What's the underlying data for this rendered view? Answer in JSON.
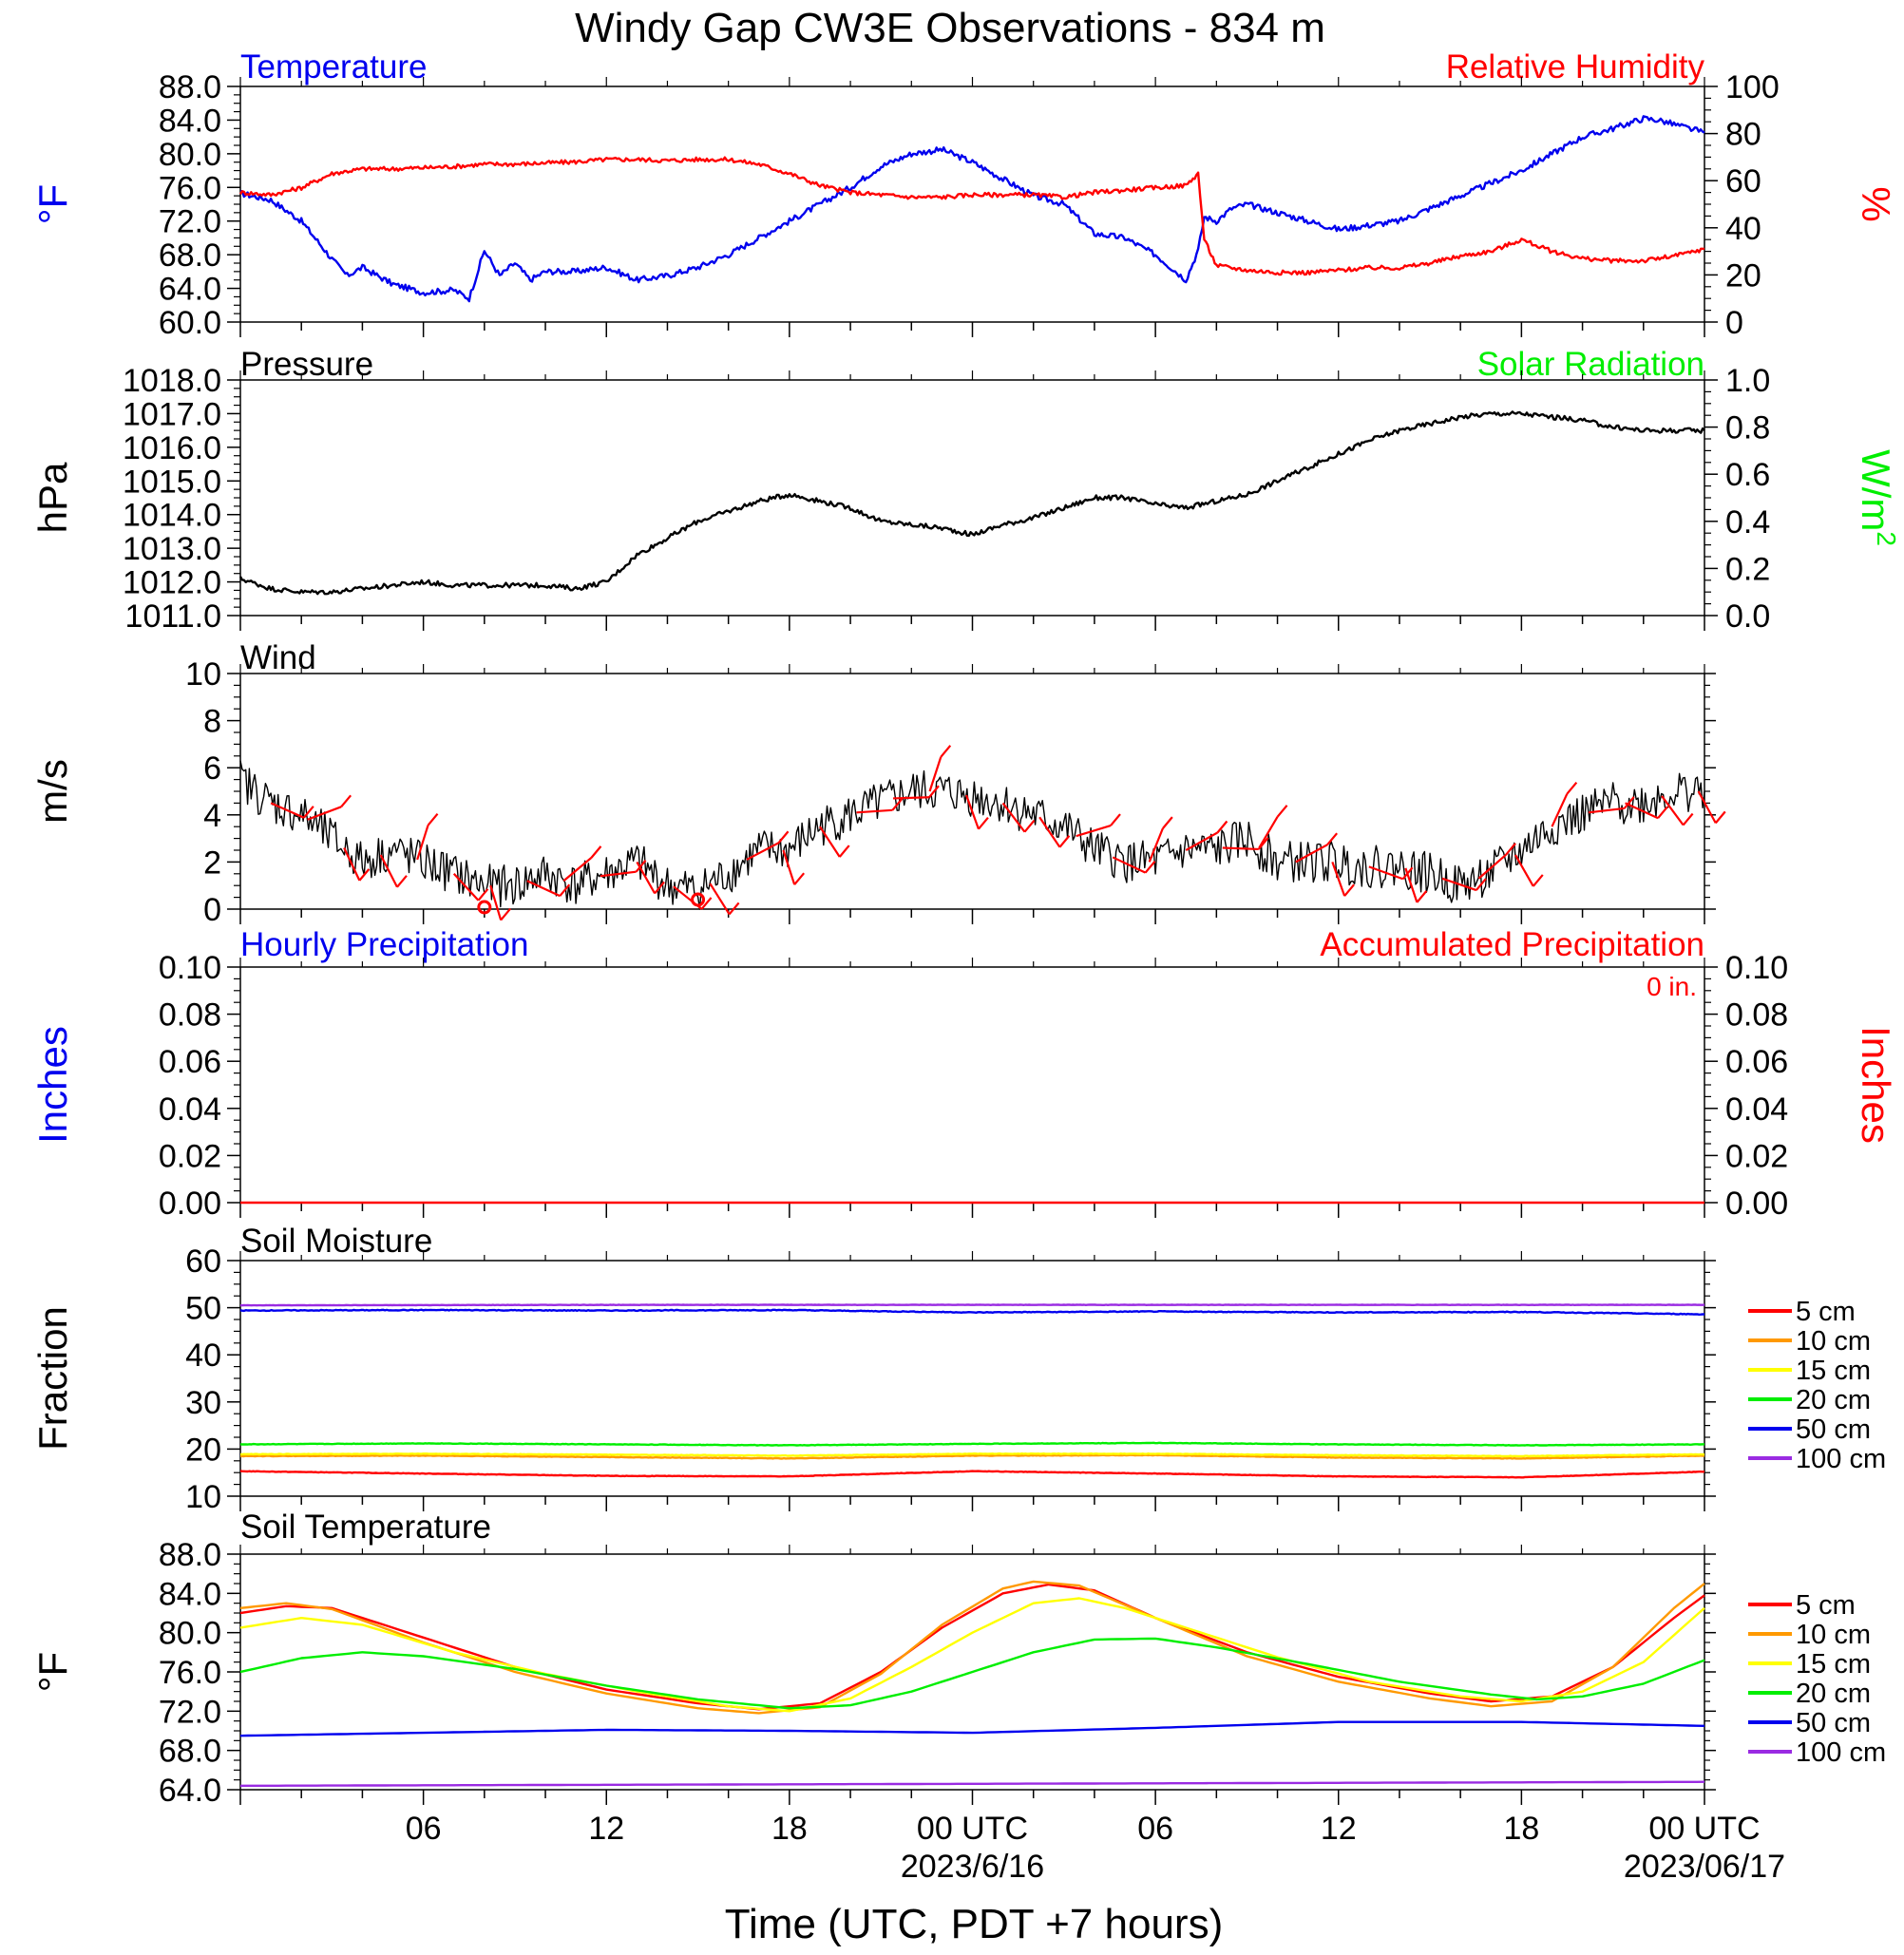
{
  "title": "Windy Gap CW3E Observations - 834 m",
  "x_axis": {
    "label": "Time (UTC, PDT +7 hours)",
    "ticks": [
      {
        "t": 6,
        "label": "06"
      },
      {
        "t": 12,
        "label": "12"
      },
      {
        "t": 18,
        "label": "18"
      },
      {
        "t": 24,
        "label": "00 UTC"
      },
      {
        "t": 30,
        "label": "06"
      },
      {
        "t": 36,
        "label": "12"
      },
      {
        "t": 42,
        "label": "18"
      },
      {
        "t": 48,
        "label": "00 UTC"
      }
    ],
    "date_labels": [
      {
        "t": 24,
        "label": "2023/6/16"
      },
      {
        "t": 48,
        "label": "2023/06/17"
      }
    ],
    "range_hours": [
      0,
      48
    ]
  },
  "legend": {
    "entries": [
      {
        "label": "5 cm",
        "color": "#ff0000"
      },
      {
        "label": "10 cm",
        "color": "#ff9900"
      },
      {
        "label": "15 cm",
        "color": "#ffff00"
      },
      {
        "label": "20 cm",
        "color": "#00ee00"
      },
      {
        "label": "50 cm",
        "color": "#0000ee"
      },
      {
        "label": "100 cm",
        "color": "#9a2be2"
      }
    ]
  },
  "chart_data": [
    {
      "type": "line",
      "id": "temp_rh",
      "left_title": "Temperature",
      "right_title": "Relative Humidity",
      "left_unit": "°F",
      "right_unit": "%",
      "left_ylim": [
        60,
        88
      ],
      "right_ylim": [
        0,
        100
      ],
      "left_ticks": [
        "60.0",
        "64.0",
        "68.0",
        "72.0",
        "76.0",
        "80.0",
        "84.0",
        "88.0"
      ],
      "right_ticks": [
        "0",
        "20",
        "40",
        "60",
        "80",
        "100"
      ],
      "series": [
        {
          "name": "Temperature",
          "axis": "left",
          "color": "#0000ee",
          "x": [
            0,
            1,
            2,
            3,
            3.5,
            4,
            5,
            6,
            7,
            7.5,
            8,
            8.5,
            9,
            9.5,
            10,
            11,
            12,
            13,
            14,
            15,
            16,
            17,
            18,
            19,
            20,
            21,
            22,
            23,
            24,
            25,
            26,
            27,
            28,
            29,
            30,
            31,
            31.4,
            31.6,
            32,
            32.5,
            33,
            34,
            35,
            36,
            37,
            38,
            39,
            40,
            41,
            42,
            43,
            44,
            45,
            46,
            46.5,
            47,
            47.5,
            48
          ],
          "y": [
            75.3,
            74.5,
            72.0,
            67.5,
            65.5,
            66.5,
            64.5,
            63.5,
            63.8,
            62.8,
            68.5,
            65.5,
            67.0,
            65.0,
            66.0,
            66.0,
            66.5,
            65.0,
            65.5,
            66.5,
            68.0,
            70.0,
            72.0,
            74.0,
            76.0,
            78.5,
            80.0,
            80.5,
            79.0,
            77.0,
            75.0,
            74.0,
            70.5,
            70.0,
            68.0,
            65.0,
            68.5,
            72.5,
            72.0,
            73.5,
            74.0,
            73.0,
            72.0,
            71.0,
            71.5,
            72.0,
            73.5,
            75.0,
            76.5,
            78.0,
            80.0,
            82.0,
            83.0,
            84.2,
            84.0,
            83.5,
            83.0,
            82.5
          ]
        },
        {
          "name": "Relative Humidity",
          "axis": "right",
          "color": "#ff0000",
          "x": [
            0,
            1,
            2,
            3,
            4,
            5,
            6,
            7,
            8,
            9,
            10,
            11,
            12,
            13,
            14,
            15,
            16,
            17,
            18,
            19,
            20,
            21,
            22,
            23,
            24,
            25,
            26,
            27,
            28,
            29,
            30,
            31,
            31.4,
            31.6,
            32,
            33,
            34,
            35,
            36,
            37,
            38,
            39,
            40,
            41,
            42,
            43,
            44,
            45,
            46,
            47,
            48
          ],
          "y": [
            55,
            54,
            57,
            63,
            65,
            65,
            65.5,
            66,
            67,
            67,
            67.5,
            68,
            69,
            69,
            68.5,
            69,
            69,
            67,
            63,
            58,
            55,
            54,
            53,
            53,
            54,
            54,
            54,
            53,
            55,
            56,
            57,
            58,
            63,
            35,
            24,
            22,
            21,
            21,
            22,
            23,
            23,
            25,
            28,
            30,
            35,
            30,
            27,
            26,
            26,
            28,
            31
          ]
        }
      ]
    },
    {
      "type": "line",
      "id": "pressure",
      "left_title": "Pressure",
      "right_title": "Solar Radiation",
      "left_unit": "hPa",
      "right_unit": "W/m",
      "right_unit_sup": "2",
      "left_ylim": [
        1011,
        1018
      ],
      "right_ylim": [
        0,
        1
      ],
      "left_ticks": [
        "1011.0",
        "1012.0",
        "1013.0",
        "1014.0",
        "1015.0",
        "1016.0",
        "1017.0",
        "1018.0"
      ],
      "right_ticks": [
        "0.0",
        "0.2",
        "0.4",
        "0.6",
        "0.8",
        "1.0"
      ],
      "series": [
        {
          "name": "Pressure",
          "axis": "left",
          "color": "#000000",
          "x": [
            0,
            1,
            2,
            3,
            4,
            5,
            6,
            7,
            8,
            9,
            10,
            11,
            12,
            12.5,
            13,
            14,
            15,
            16,
            17,
            18,
            19,
            20,
            21,
            22,
            23,
            24,
            25,
            26,
            27,
            28,
            29,
            30,
            31,
            32,
            33,
            34,
            35,
            36,
            37,
            38,
            39,
            40,
            41,
            42,
            43,
            44,
            45,
            46,
            47,
            48
          ],
          "y": [
            1012.1,
            1011.8,
            1011.7,
            1011.7,
            1011.8,
            1011.9,
            1012.0,
            1011.9,
            1011.9,
            1011.9,
            1011.9,
            1011.8,
            1012.0,
            1012.4,
            1012.8,
            1013.3,
            1013.8,
            1014.1,
            1014.4,
            1014.6,
            1014.4,
            1014.2,
            1013.8,
            1013.7,
            1013.6,
            1013.4,
            1013.7,
            1013.9,
            1014.2,
            1014.5,
            1014.5,
            1014.3,
            1014.2,
            1014.4,
            1014.6,
            1015.0,
            1015.4,
            1015.8,
            1016.2,
            1016.5,
            1016.7,
            1016.9,
            1017.0,
            1017.0,
            1016.9,
            1016.8,
            1016.6,
            1016.5,
            1016.5,
            1016.5
          ]
        }
      ]
    },
    {
      "type": "line",
      "id": "wind",
      "left_title": "Wind",
      "left_unit": "m/s",
      "left_ylim": [
        0,
        10
      ],
      "left_ticks": [
        "0",
        "2",
        "4",
        "6",
        "8",
        "10"
      ],
      "barb_color": "#ff0000",
      "calm_markers_hours": [
        8,
        15
      ],
      "series": [
        {
          "name": "Wind",
          "axis": "left",
          "color": "#000000",
          "x": [
            0,
            1,
            2,
            3,
            4,
            5,
            6,
            7,
            8,
            9,
            10,
            11,
            12,
            13,
            14,
            15,
            16,
            17,
            18,
            19,
            20,
            21,
            22,
            23,
            24,
            25,
            26,
            27,
            28,
            29,
            30,
            31,
            32,
            33,
            34,
            35,
            36,
            37,
            38,
            39,
            40,
            41,
            42,
            43,
            44,
            45,
            46,
            47,
            48
          ],
          "y": [
            5.5,
            4.5,
            4.0,
            3.0,
            2.0,
            2.5,
            2.0,
            1.5,
            1.0,
            1.0,
            1.5,
            1.0,
            1.5,
            2.0,
            1.0,
            0.8,
            1.5,
            2.5,
            2.5,
            3.5,
            4.0,
            4.5,
            5.0,
            5.0,
            4.8,
            4.5,
            4.0,
            3.5,
            2.5,
            2.0,
            2.0,
            2.5,
            2.5,
            3.0,
            2.0,
            2.0,
            2.0,
            1.8,
            1.8,
            1.5,
            1.0,
            1.5,
            2.5,
            3.5,
            4.0,
            4.5,
            4.5,
            5.0,
            5.0
          ]
        }
      ]
    },
    {
      "type": "line",
      "id": "precip",
      "left_title": "Hourly Precipitation",
      "right_title": "Accumulated Precipitation",
      "annotation": "0 in.",
      "left_unit": "Inches",
      "right_unit": "Inches",
      "left_ylim": [
        0,
        0.1
      ],
      "right_ylim": [
        0,
        0.1
      ],
      "left_ticks": [
        "0.00",
        "0.02",
        "0.04",
        "0.06",
        "0.08",
        "0.10"
      ],
      "right_ticks": [
        "0.00",
        "0.02",
        "0.04",
        "0.06",
        "0.08",
        "0.10"
      ],
      "series": [
        {
          "name": "Accumulated Precipitation",
          "axis": "left",
          "color": "#ff0000",
          "x": [
            0,
            48
          ],
          "y": [
            0,
            0
          ]
        }
      ]
    },
    {
      "type": "line",
      "id": "soil_moisture",
      "left_title": "Soil Moisture",
      "left_unit": "Fraction",
      "left_ylim": [
        10,
        60
      ],
      "left_ticks": [
        "10",
        "20",
        "30",
        "40",
        "50",
        "60"
      ],
      "series": [
        {
          "name": "5 cm",
          "axis": "left",
          "color": "#ff0000",
          "x": [
            0,
            6,
            12,
            18,
            24,
            30,
            36,
            42,
            48
          ],
          "y": [
            15.3,
            14.8,
            14.3,
            14.2,
            15.3,
            14.8,
            14.2,
            14.0,
            15.2
          ]
        },
        {
          "name": "10 cm",
          "axis": "left",
          "color": "#ff9900",
          "x": [
            0,
            6,
            12,
            18,
            24,
            30,
            36,
            42,
            48
          ],
          "y": [
            18.5,
            18.6,
            18.3,
            18.0,
            18.6,
            18.7,
            18.2,
            18.0,
            18.6
          ]
        },
        {
          "name": "15 cm",
          "axis": "left",
          "color": "#ffff00",
          "x": [
            0,
            6,
            12,
            18,
            24,
            30,
            36,
            42,
            48
          ],
          "y": [
            18.9,
            19.0,
            18.8,
            18.6,
            19.0,
            19.0,
            18.7,
            18.5,
            18.9
          ]
        },
        {
          "name": "20 cm",
          "axis": "left",
          "color": "#00ee00",
          "x": [
            0,
            6,
            12,
            18,
            24,
            30,
            36,
            42,
            48
          ],
          "y": [
            21.0,
            21.2,
            21.0,
            20.8,
            21.1,
            21.3,
            21.0,
            20.8,
            21.0
          ]
        },
        {
          "name": "50 cm",
          "axis": "left",
          "color": "#0000ee",
          "x": [
            0,
            6,
            12,
            18,
            24,
            30,
            36,
            42,
            48
          ],
          "y": [
            49.4,
            49.5,
            49.4,
            49.5,
            49.0,
            49.2,
            49.0,
            49.1,
            48.6
          ]
        },
        {
          "name": "100 cm",
          "axis": "left",
          "color": "#9a2be2",
          "x": [
            0,
            12,
            24,
            36,
            48
          ],
          "y": [
            50.5,
            50.6,
            50.6,
            50.6,
            50.6
          ]
        }
      ]
    },
    {
      "type": "line",
      "id": "soil_temp",
      "left_title": "Soil Temperature",
      "left_unit": "°F",
      "left_ylim": [
        64,
        88
      ],
      "left_ticks": [
        "64.0",
        "68.0",
        "72.0",
        "76.0",
        "80.0",
        "84.0",
        "88.0"
      ],
      "series": [
        {
          "name": "5 cm",
          "axis": "left",
          "color": "#ff0000",
          "x": [
            0,
            1.5,
            3,
            6,
            9,
            12,
            15,
            17,
            19,
            21,
            23,
            25,
            26.5,
            28,
            30,
            33,
            36,
            39,
            41,
            43,
            45,
            47,
            48
          ],
          "y": [
            82.0,
            82.7,
            82.5,
            79.5,
            76.5,
            74.2,
            72.8,
            72.2,
            72.8,
            76.0,
            80.5,
            84.0,
            84.9,
            84.3,
            81.5,
            78.0,
            75.5,
            73.8,
            73.0,
            73.5,
            76.5,
            81.5,
            83.8
          ]
        },
        {
          "name": "10 cm",
          "axis": "left",
          "color": "#ff9900",
          "x": [
            0,
            1.5,
            3,
            6,
            9,
            12,
            15,
            17,
            19,
            21,
            23,
            25,
            26,
            27.5,
            30,
            33,
            36,
            39,
            41,
            43,
            45,
            47,
            48
          ],
          "y": [
            82.5,
            83.0,
            82.4,
            79.0,
            76.0,
            73.8,
            72.3,
            71.8,
            72.4,
            75.8,
            80.8,
            84.5,
            85.2,
            84.8,
            81.5,
            77.6,
            75.0,
            73.3,
            72.5,
            73.0,
            76.5,
            82.5,
            85.0
          ]
        },
        {
          "name": "15 cm",
          "axis": "left",
          "color": "#ffff00",
          "x": [
            0,
            2,
            4,
            7,
            10,
            13,
            16,
            18,
            20,
            22,
            24,
            26,
            27.5,
            29,
            31,
            34,
            37,
            40,
            42,
            44,
            46,
            48
          ],
          "y": [
            80.5,
            81.5,
            80.8,
            78.0,
            75.8,
            74.0,
            72.5,
            72.0,
            73.3,
            76.5,
            80.0,
            83.0,
            83.5,
            82.5,
            80.5,
            77.5,
            75.0,
            73.5,
            73.0,
            74.0,
            77.0,
            82.5
          ]
        },
        {
          "name": "20 cm",
          "axis": "left",
          "color": "#00ee00",
          "x": [
            0,
            2,
            4,
            6,
            9,
            12,
            15,
            18,
            20,
            22,
            24,
            26,
            28,
            30,
            32,
            35,
            38,
            41,
            42.5,
            44,
            46,
            48
          ],
          "y": [
            76.0,
            77.4,
            78.0,
            77.6,
            76.3,
            74.6,
            73.2,
            72.3,
            72.6,
            74.0,
            76.0,
            78.0,
            79.3,
            79.4,
            78.5,
            76.8,
            75.0,
            73.7,
            73.2,
            73.5,
            74.8,
            77.2
          ]
        },
        {
          "name": "50 cm",
          "axis": "left",
          "color": "#0000ee",
          "x": [
            0,
            6,
            12,
            18,
            24,
            30,
            36,
            42,
            48
          ],
          "y": [
            69.5,
            69.8,
            70.1,
            70.0,
            69.8,
            70.3,
            70.9,
            70.9,
            70.5
          ]
        },
        {
          "name": "100 cm",
          "axis": "left",
          "color": "#9a2be2",
          "x": [
            0,
            12,
            24,
            36,
            48
          ],
          "y": [
            64.4,
            64.5,
            64.6,
            64.7,
            64.8
          ]
        }
      ]
    }
  ]
}
